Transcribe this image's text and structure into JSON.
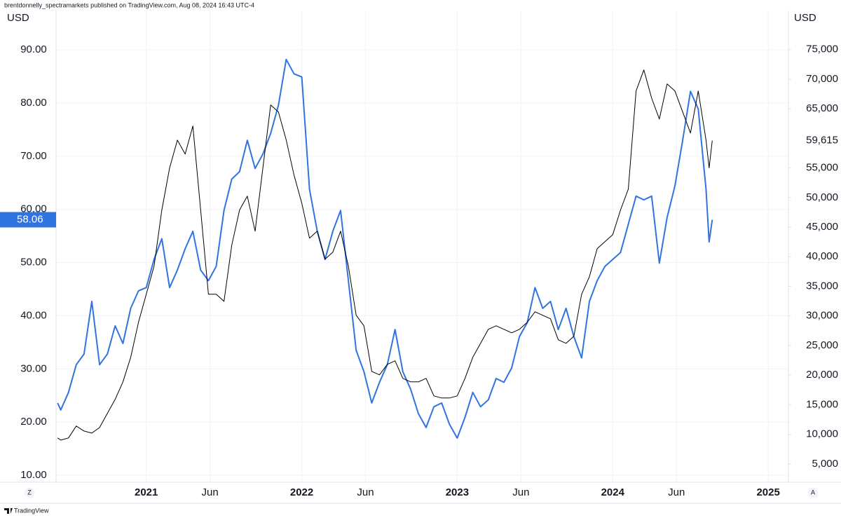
{
  "header": "brentdonnelly_spectramarkets published on TradingView.com, Aug 08, 2024 16:43 UTC-4",
  "footer": "TradingView",
  "controls": [
    "Z",
    "A"
  ],
  "chart_data": {
    "type": "line",
    "y_label": "USD",
    "y2_label": "USD",
    "x": [
      2020.43,
      2020.45,
      2020.5,
      2020.55,
      2020.6,
      2020.65,
      2020.7,
      2020.75,
      2020.8,
      2020.85,
      2020.9,
      2020.95,
      2021.0,
      2021.05,
      2021.1,
      2021.15,
      2021.2,
      2021.25,
      2021.3,
      2021.35,
      2021.4,
      2021.45,
      2021.5,
      2021.55,
      2021.6,
      2021.65,
      2021.7,
      2021.75,
      2021.8,
      2021.85,
      2021.9,
      2021.95,
      2022.0,
      2022.05,
      2022.1,
      2022.15,
      2022.2,
      2022.25,
      2022.3,
      2022.35,
      2022.4,
      2022.45,
      2022.5,
      2022.55,
      2022.6,
      2022.65,
      2022.7,
      2022.75,
      2022.8,
      2022.85,
      2022.9,
      2022.95,
      2023.0,
      2023.05,
      2023.1,
      2023.15,
      2023.2,
      2023.25,
      2023.3,
      2023.35,
      2023.4,
      2023.45,
      2023.5,
      2023.55,
      2023.6,
      2023.65,
      2023.7,
      2023.75,
      2023.8,
      2023.85,
      2023.9,
      2023.95,
      2024.0,
      2024.05,
      2024.1,
      2024.15,
      2024.2,
      2024.25,
      2024.3,
      2024.35,
      2024.4,
      2024.45,
      2024.5,
      2024.55,
      2024.6,
      2024.62,
      2024.64
    ],
    "series": [
      {
        "color": "#2f74e0",
        "axis": "y",
        "values": [
          23.6,
          22.3,
          25.6,
          30.8,
          32.8,
          42.7,
          30.8,
          32.8,
          38.1,
          34.8,
          41.4,
          44.7,
          45.3,
          50.6,
          54.5,
          45.3,
          48.6,
          52.6,
          55.9,
          48.6,
          46.6,
          49.3,
          59.8,
          65.7,
          67.1,
          73.0,
          67.7,
          70.4,
          74.3,
          79.6,
          88.2,
          85.5,
          84.9,
          63.8,
          55.9,
          50.6,
          55.9,
          59.8,
          46.6,
          33.5,
          29.5,
          23.6,
          27.5,
          30.8,
          37.4,
          29.5,
          26.2,
          21.6,
          19.0,
          22.9,
          23.6,
          19.6,
          17.0,
          20.9,
          25.6,
          22.9,
          24.2,
          28.2,
          27.5,
          30.2,
          36.1,
          38.7,
          45.3,
          41.4,
          42.7,
          37.4,
          41.4,
          36.1,
          32.1,
          42.7,
          46.6,
          49.3,
          50.6,
          51.9,
          57.2,
          62.5,
          61.8,
          62.5,
          49.9,
          58.5,
          64.4,
          73.0,
          82.2,
          78.9,
          63.8,
          53.9,
          58.06
        ]
      },
      {
        "color": "#000000",
        "axis": "y2",
        "price_label": "59,615",
        "values": [
          9380,
          9020,
          9380,
          11400,
          10560,
          10200,
          11150,
          13530,
          15900,
          18860,
          23000,
          28920,
          33660,
          38400,
          47900,
          55000,
          59700,
          57350,
          62100,
          47900,
          33660,
          33660,
          32470,
          41950,
          47900,
          50240,
          44320,
          55000,
          65640,
          64460,
          59720,
          53800,
          49060,
          43140,
          44320,
          39580,
          40770,
          44320,
          38400,
          30110,
          28330,
          20630,
          20040,
          21820,
          22410,
          19450,
          18860,
          18860,
          19450,
          16490,
          16130,
          16130,
          16490,
          19450,
          23000,
          25370,
          27740,
          28330,
          27740,
          27150,
          27740,
          28920,
          30700,
          30110,
          29520,
          25960,
          25370,
          26560,
          33660,
          36620,
          41360,
          42550,
          43730,
          47900,
          51430,
          68000,
          71570,
          66800,
          63270,
          69200,
          68000,
          64460,
          60900,
          68000,
          59720,
          55000,
          59615
        ]
      }
    ],
    "xlim": [
      2020.42,
      2025.13
    ],
    "xticks": [
      2021,
      {
        "value": 2021.41,
        "label": "Jun"
      },
      2022,
      {
        "value": 2022.41,
        "label": "Jun"
      },
      2023,
      {
        "value": 2023.41,
        "label": "Jun"
      },
      2024,
      {
        "value": 2024.41,
        "label": "Jun"
      },
      2025
    ],
    "ylim": [
      8.7,
      97.4
    ],
    "yticks": [
      {
        "value": 10,
        "label": "10.00"
      },
      {
        "value": 20,
        "label": "20.00"
      },
      {
        "value": 30,
        "label": "30.00"
      },
      {
        "value": 40,
        "label": "40.00"
      },
      {
        "value": 50,
        "label": "50.00"
      },
      {
        "value": 60,
        "label": "60.00"
      },
      {
        "value": 70,
        "label": "70.00"
      },
      {
        "value": 80,
        "label": "80.00"
      },
      {
        "value": 90,
        "label": "90.00"
      }
    ],
    "y2lim": [
      1900,
      81600
    ],
    "y2ticks": [
      {
        "value": 5000,
        "label": "5,000"
      },
      {
        "value": 10000,
        "label": "10,000"
      },
      {
        "value": 15000,
        "label": "15,000"
      },
      {
        "value": 20000,
        "label": "20,000"
      },
      {
        "value": 25000,
        "label": "25,000"
      },
      {
        "value": 30000,
        "label": "30,000"
      },
      {
        "value": 35000,
        "label": "35,000"
      },
      {
        "value": 40000,
        "label": "40,000"
      },
      {
        "value": 45000,
        "label": "45,000"
      },
      {
        "value": 50000,
        "label": "50,000"
      },
      {
        "value": 55000,
        "label": "55,000"
      },
      {
        "value": 65000,
        "label": "65,000"
      },
      {
        "value": 70000,
        "label": "70,000"
      },
      {
        "value": 75000,
        "label": "75,000"
      }
    ],
    "grid": true
  }
}
